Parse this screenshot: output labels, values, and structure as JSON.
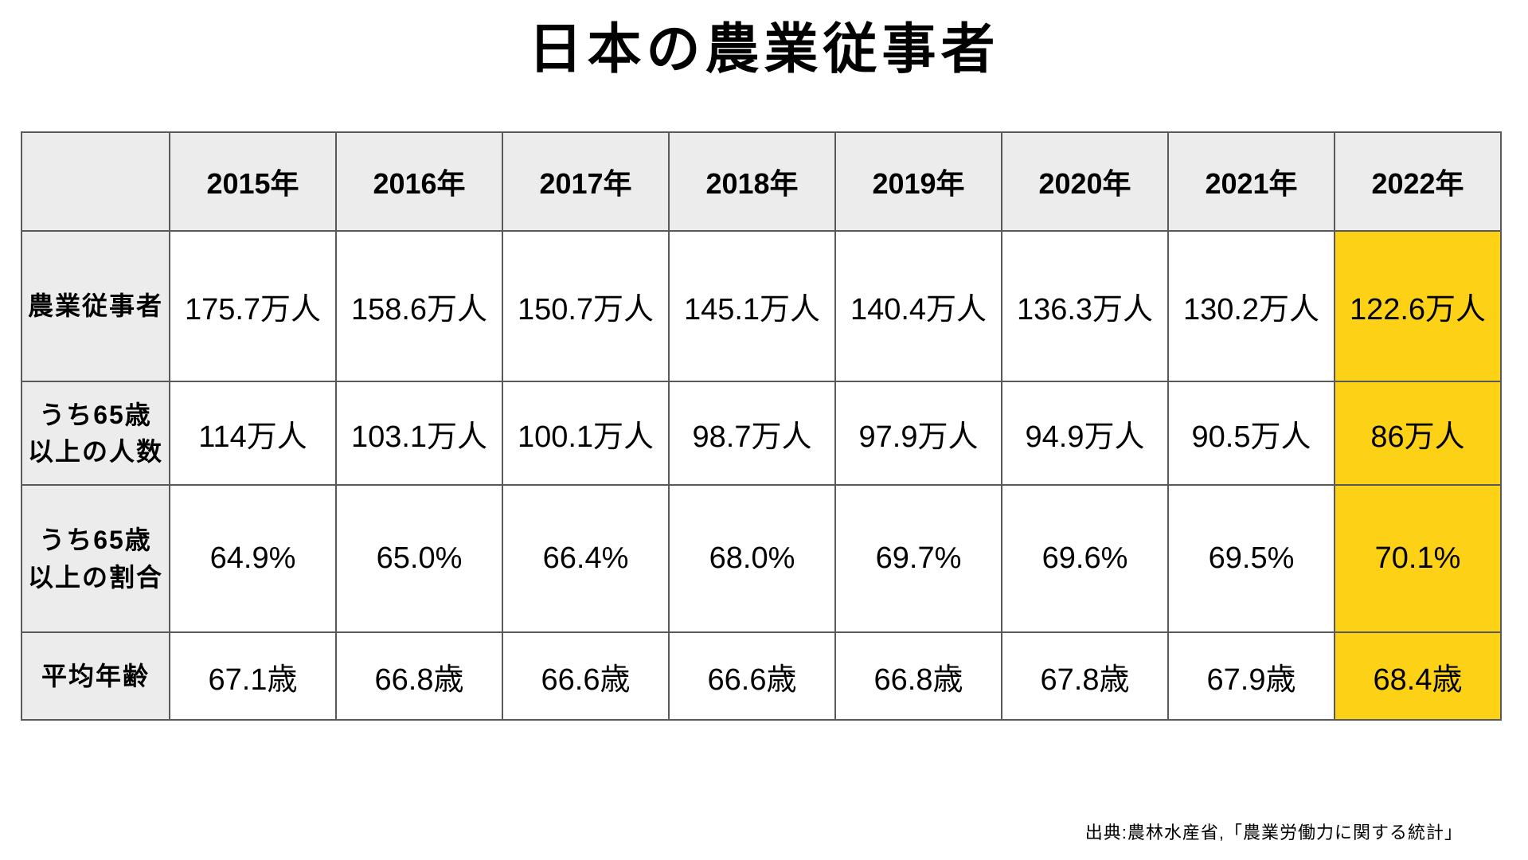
{
  "title": "日本の農業従事者",
  "source": "出典:農林水産省,「農業労働力に関する統計」",
  "colors": {
    "highlight": "#fcd116",
    "header_bg": "#ececec",
    "border": "#595959"
  },
  "chart_data": {
    "type": "table",
    "title": "日本の農業従事者",
    "columns": [
      "2015年",
      "2016年",
      "2017年",
      "2018年",
      "2019年",
      "2020年",
      "2021年",
      "2022年"
    ],
    "rows": [
      {
        "label": "農業従事者",
        "values": [
          "175.7万人",
          "158.6万人",
          "150.7万人",
          "145.1万人",
          "140.4万人",
          "136.3万人",
          "130.2万人",
          "122.6万人"
        ]
      },
      {
        "label": "うち65歳\n以上の人数",
        "values": [
          "114万人",
          "103.1万人",
          "100.1万人",
          "98.7万人",
          "97.9万人",
          "94.9万人",
          "90.5万人",
          "86万人"
        ]
      },
      {
        "label": "うち65歳\n以上の割合",
        "values": [
          "64.9%",
          "65.0%",
          "66.4%",
          "68.0%",
          "69.7%",
          "69.6%",
          "69.5%",
          "70.1%"
        ]
      },
      {
        "label": "平均年齢",
        "values": [
          "67.1歳",
          "66.8歳",
          "66.6歳",
          "66.6歳",
          "66.8歳",
          "67.8歳",
          "67.9歳",
          "68.4歳"
        ]
      }
    ],
    "highlight_column": "2022年",
    "highlight_column_index": 7,
    "source": "出典:農林水産省,「農業労働力に関する統計」",
    "layout": {
      "grid": "on",
      "legend": "none"
    }
  }
}
